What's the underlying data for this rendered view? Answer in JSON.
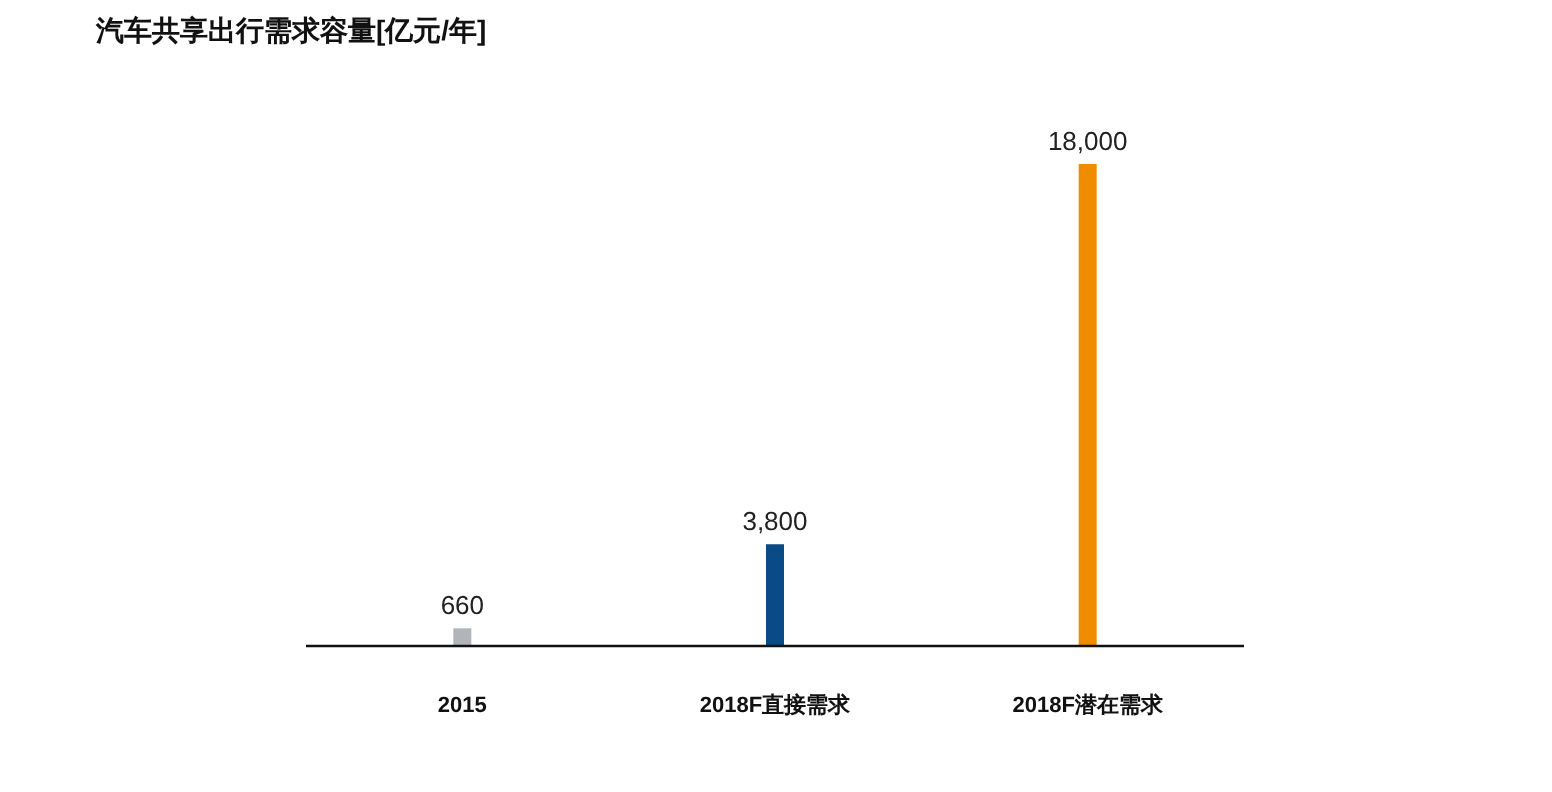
{
  "chart_data": {
    "type": "bar",
    "title": "汽车共享出行需求容量[亿元/年]",
    "categories": [
      "2015",
      "2018F直接需求",
      "2018F潜在需求"
    ],
    "values": [
      660,
      3800,
      18000
    ],
    "colors": [
      "#b1b4b9",
      "#0a4a86",
      "#f08c00"
    ],
    "value_labels": [
      "660",
      "3,800",
      "18,000"
    ]
  }
}
